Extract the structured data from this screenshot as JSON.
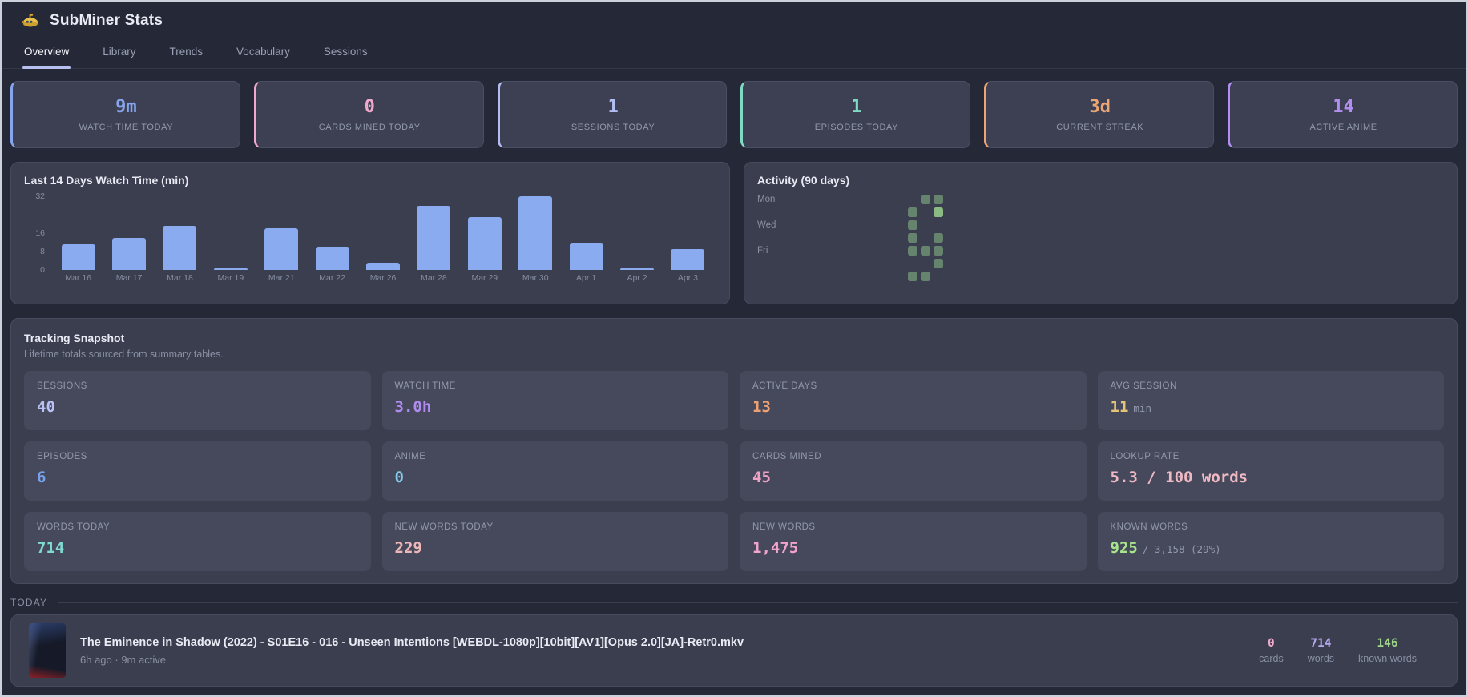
{
  "header": {
    "title": "SubMiner Stats",
    "logo_icon": "submarine-icon"
  },
  "tabs": [
    {
      "label": "Overview",
      "active": true
    },
    {
      "label": "Library",
      "active": false
    },
    {
      "label": "Trends",
      "active": false
    },
    {
      "label": "Vocabulary",
      "active": false
    },
    {
      "label": "Sessions",
      "active": false
    }
  ],
  "stat_cards": [
    {
      "value": "9m",
      "label": "WATCH TIME TODAY",
      "color": "#86a5ee"
    },
    {
      "value": "0",
      "label": "CARDS MINED TODAY",
      "color": "#f0a8cc"
    },
    {
      "value": "1",
      "label": "SESSIONS TODAY",
      "color": "#b4bdf2"
    },
    {
      "value": "1",
      "label": "EPISODES TODAY",
      "color": "#7fd9c3"
    },
    {
      "value": "3d",
      "label": "CURRENT STREAK",
      "color": "#eda673"
    },
    {
      "value": "14",
      "label": "ACTIVE ANIME",
      "color": "#b38ef2"
    }
  ],
  "chart_data": {
    "type": "bar",
    "title": "Last 14 Days Watch Time (min)",
    "categories": [
      "Mar 16",
      "Mar 17",
      "Mar 18",
      "Mar 19",
      "Mar 21",
      "Mar 22",
      "Mar 26",
      "Mar 28",
      "Mar 29",
      "Mar 30",
      "Apr 1",
      "Apr 2",
      "Apr 3"
    ],
    "values": [
      11,
      14,
      19,
      1,
      18,
      10,
      3,
      28,
      23,
      32,
      12,
      1,
      9
    ],
    "yticks": [
      32,
      16,
      8,
      0
    ],
    "ylim": [
      0,
      32
    ],
    "xlabel": "",
    "ylabel": "",
    "grid": false,
    "legend": false,
    "bar_color": "#8aabf0"
  },
  "activity": {
    "title": "Activity (90 days)",
    "grid": {
      "rows": 7,
      "cols": 13
    },
    "day_labels": [
      {
        "row": 0,
        "label": "Mon"
      },
      {
        "row": 2,
        "label": "Wed"
      },
      {
        "row": 4,
        "label": "Fri"
      }
    ],
    "colors": {
      "filled": "#66836e",
      "high": "#8cba83"
    },
    "cells": [
      {
        "row": 0,
        "col": 9
      },
      {
        "row": 0,
        "col": 10
      },
      {
        "row": 1,
        "col": 8
      },
      {
        "row": 1,
        "col": 10,
        "level": "high"
      },
      {
        "row": 2,
        "col": 8
      },
      {
        "row": 3,
        "col": 8
      },
      {
        "row": 3,
        "col": 10
      },
      {
        "row": 4,
        "col": 8
      },
      {
        "row": 4,
        "col": 9
      },
      {
        "row": 4,
        "col": 10
      },
      {
        "row": 5,
        "col": 10
      },
      {
        "row": 6,
        "col": 8
      },
      {
        "row": 6,
        "col": 9
      }
    ]
  },
  "snapshot": {
    "title": "Tracking Snapshot",
    "subtitle": "Lifetime totals sourced from summary tables.",
    "cells": [
      {
        "label": "SESSIONS",
        "value": "40",
        "suffix": "",
        "color": "#b9c2f4"
      },
      {
        "label": "WATCH TIME",
        "value": "3.0h",
        "suffix": "",
        "color": "#b18cf0"
      },
      {
        "label": "ACTIVE DAYS",
        "value": "13",
        "suffix": "",
        "color": "#eda173"
      },
      {
        "label": "AVG SESSION",
        "value": "11",
        "suffix": "min",
        "color": "#e5c478"
      },
      {
        "label": "EPISODES",
        "value": "6",
        "suffix": "",
        "color": "#79a2ec"
      },
      {
        "label": "ANIME",
        "value": "0",
        "suffix": "",
        "color": "#83cbe8"
      },
      {
        "label": "CARDS MINED",
        "value": "45",
        "suffix": "",
        "color": "#f0a0c4"
      },
      {
        "label": "LOOKUP RATE",
        "value": "5.3 / 100 words",
        "suffix": "",
        "color": "#efb9c4"
      },
      {
        "label": "WORDS TODAY",
        "value": "714",
        "suffix": "",
        "color": "#7edbd2"
      },
      {
        "label": "NEW WORDS TODAY",
        "value": "229",
        "suffix": "",
        "color": "#eeb7b7"
      },
      {
        "label": "NEW WORDS",
        "value": "1,475",
        "suffix": "",
        "color": "#f2a3cb"
      },
      {
        "label": "KNOWN WORDS",
        "value": "925",
        "suffix": "/ 3,158 (29%)",
        "color": "#a8e48c"
      }
    ]
  },
  "today": {
    "section_label": "TODAY",
    "entry": {
      "title": "The Eminence in Shadow (2022) - S01E16 - 016 - Unseen Intentions [WEBDL-1080p][10bit][AV1][Opus 2.0][JA]-Retr0.mkv",
      "meta": "6h ago · 9m active",
      "stats": [
        {
          "value": "0",
          "label": "cards",
          "color": "#eeaac8"
        },
        {
          "value": "714",
          "label": "words",
          "color": "#b6a7ee"
        },
        {
          "value": "146",
          "label": "known words",
          "color": "#9fd58a"
        }
      ]
    }
  }
}
